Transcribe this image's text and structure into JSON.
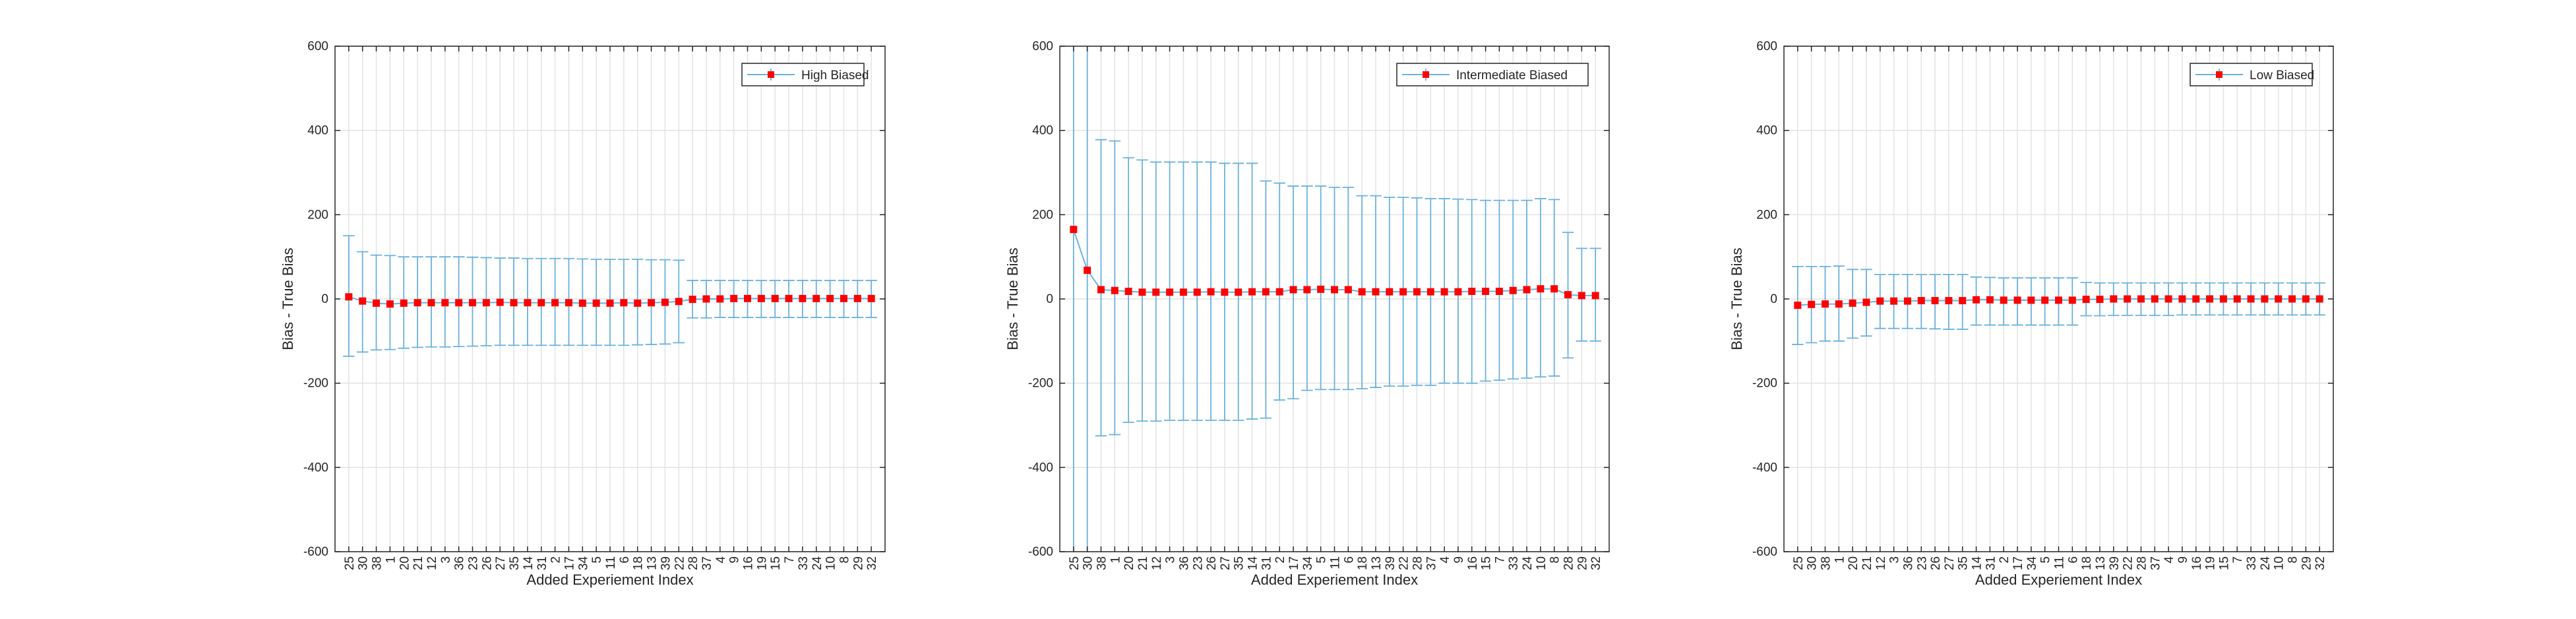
{
  "chart_data": [
    {
      "type": "errorbar",
      "legend": "High Biased",
      "legend_location": "top-right",
      "xlabel": "Added Experiement Index",
      "ylabel": "Bias - True Bias",
      "ylim": [
        -600,
        600
      ],
      "yticks": [
        -600,
        -400,
        -200,
        0,
        200,
        400,
        600
      ],
      "grid": true,
      "colors": {
        "marker": "#ff0000",
        "errorbar": "#6bb1dd",
        "line": "#6bb1dd"
      },
      "categories": [
        "25",
        "30",
        "38",
        "1",
        "20",
        "21",
        "12",
        "3",
        "36",
        "23",
        "26",
        "27",
        "35",
        "14",
        "31",
        "2",
        "17",
        "34",
        "5",
        "11",
        "6",
        "18",
        "13",
        "39",
        "22",
        "28",
        "37",
        "4",
        "9",
        "16",
        "19",
        "15",
        "7",
        "33",
        "24",
        "10",
        "8",
        "29",
        "32"
      ],
      "values": [
        5,
        -5,
        -10,
        -12,
        -10,
        -9,
        -9,
        -9,
        -9,
        -9,
        -9,
        -8,
        -9,
        -9,
        -9,
        -9,
        -9,
        -10,
        -10,
        -10,
        -9,
        -10,
        -9,
        -8,
        -6,
        -1,
        0,
        0,
        1,
        1,
        1,
        1,
        1,
        1,
        1,
        1,
        1,
        1,
        1
      ],
      "upper": [
        150,
        112,
        104,
        103,
        100,
        100,
        100,
        100,
        100,
        99,
        98,
        97,
        97,
        96,
        96,
        96,
        96,
        95,
        94,
        94,
        94,
        94,
        93,
        93,
        92,
        44,
        44,
        44,
        44,
        44,
        44,
        44,
        44,
        44,
        44,
        44,
        44,
        44,
        44
      ],
      "lower": [
        -136,
        -126,
        -121,
        -120,
        -117,
        -115,
        -114,
        -114,
        -113,
        -112,
        -111,
        -110,
        -110,
        -110,
        -110,
        -110,
        -110,
        -110,
        -110,
        -110,
        -110,
        -109,
        -108,
        -107,
        -104,
        -45,
        -45,
        -44,
        -44,
        -44,
        -44,
        -44,
        -44,
        -44,
        -44,
        -44,
        -44,
        -44,
        -44
      ]
    },
    {
      "type": "errorbar",
      "legend": "Intermediate Biased",
      "legend_location": "top-right",
      "xlabel": "Added Experiement Index",
      "ylabel": "Bias - True Bias",
      "ylim": [
        -600,
        600
      ],
      "yticks": [
        -600,
        -400,
        -200,
        0,
        200,
        400,
        600
      ],
      "grid": true,
      "colors": {
        "marker": "#ff0000",
        "errorbar": "#6bb1dd",
        "line": "#6bb1dd"
      },
      "categories": [
        "25",
        "30",
        "38",
        "1",
        "20",
        "21",
        "12",
        "3",
        "36",
        "23",
        "26",
        "27",
        "35",
        "14",
        "31",
        "2",
        "17",
        "34",
        "5",
        "11",
        "6",
        "18",
        "13",
        "39",
        "22",
        "28",
        "37",
        "4",
        "9",
        "16",
        "15",
        "7",
        "33",
        "24",
        "10",
        "8",
        "28",
        "29",
        "32"
      ],
      "values": [
        165,
        68,
        22,
        20,
        18,
        16,
        16,
        16,
        16,
        16,
        17,
        16,
        16,
        17,
        17,
        17,
        22,
        22,
        23,
        22,
        22,
        17,
        17,
        17,
        17,
        17,
        17,
        17,
        17,
        18,
        18,
        18,
        20,
        22,
        24,
        24,
        10,
        8,
        8
      ],
      "upper": [
        600,
        600,
        378,
        375,
        335,
        330,
        325,
        325,
        325,
        325,
        325,
        322,
        322,
        322,
        280,
        275,
        268,
        268,
        268,
        265,
        265,
        245,
        245,
        241,
        241,
        240,
        238,
        238,
        237,
        236,
        234,
        234,
        234,
        234,
        238,
        236,
        158,
        120,
        120
      ],
      "lower": [
        -600,
        -600,
        -325,
        -322,
        -293,
        -290,
        -290,
        -288,
        -288,
        -288,
        -288,
        -288,
        -288,
        -285,
        -283,
        -240,
        -237,
        -217,
        -215,
        -215,
        -215,
        -213,
        -210,
        -207,
        -207,
        -205,
        -205,
        -200,
        -200,
        -200,
        -195,
        -193,
        -190,
        -188,
        -185,
        -183,
        -140,
        -100,
        -100
      ]
    },
    {
      "type": "errorbar",
      "legend": "Low Biased",
      "legend_location": "top-right",
      "xlabel": "Added Experiement Index",
      "ylabel": "Bias - True Bias",
      "ylim": [
        -600,
        600
      ],
      "yticks": [
        -600,
        -400,
        -200,
        0,
        200,
        400,
        600
      ],
      "grid": true,
      "colors": {
        "marker": "#ff0000",
        "errorbar": "#6bb1dd",
        "line": "#6bb1dd"
      },
      "categories": [
        "25",
        "30",
        "38",
        "1",
        "20",
        "21",
        "12",
        "3",
        "36",
        "23",
        "26",
        "27",
        "35",
        "14",
        "31",
        "2",
        "17",
        "34",
        "5",
        "11",
        "6",
        "18",
        "13",
        "39",
        "22",
        "28",
        "37",
        "4",
        "9",
        "16",
        "19",
        "15",
        "7",
        "33",
        "24",
        "10",
        "8",
        "29",
        "32"
      ],
      "values": [
        -15,
        -13,
        -12,
        -12,
        -10,
        -8,
        -5,
        -5,
        -5,
        -4,
        -4,
        -4,
        -4,
        -2,
        -2,
        -3,
        -3,
        -3,
        -3,
        -3,
        -3,
        -1,
        -1,
        0,
        0,
        0,
        0,
        0,
        0,
        0,
        0,
        0,
        0,
        0,
        0,
        0,
        0,
        0,
        0
      ],
      "upper": [
        77,
        77,
        77,
        78,
        70,
        70,
        58,
        58,
        58,
        58,
        58,
        58,
        58,
        52,
        51,
        50,
        50,
        50,
        50,
        50,
        50,
        39,
        38,
        38,
        38,
        38,
        38,
        38,
        38,
        38,
        38,
        38,
        38,
        38,
        38,
        38,
        38,
        38,
        38
      ],
      "lower": [
        -108,
        -104,
        -100,
        -100,
        -93,
        -88,
        -70,
        -70,
        -70,
        -70,
        -71,
        -72,
        -72,
        -62,
        -62,
        -62,
        -62,
        -62,
        -62,
        -62,
        -62,
        -40,
        -40,
        -39,
        -39,
        -39,
        -39,
        -39,
        -38,
        -38,
        -38,
        -38,
        -38,
        -38,
        -38,
        -38,
        -38,
        -38,
        -38
      ]
    }
  ]
}
